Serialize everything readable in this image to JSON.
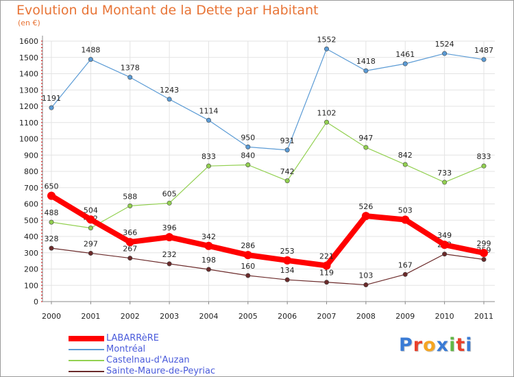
{
  "title": "Evolution du Montant de la Dette par Habitant",
  "unit_label": "(en €)",
  "logo_text": "Proxiti",
  "chart_data": {
    "type": "line",
    "title": "Evolution du Montant de la Dette par Habitant",
    "ylabel": "(en €)",
    "xlabel": "",
    "ylim": [
      0,
      1600
    ],
    "yticks": [
      0,
      100,
      200,
      300,
      400,
      500,
      600,
      700,
      800,
      900,
      1000,
      1100,
      1200,
      1300,
      1400,
      1500,
      1600
    ],
    "categories": [
      "2000",
      "2001",
      "2002",
      "2003",
      "2004",
      "2005",
      "2006",
      "2007",
      "2008",
      "2009",
      "2010",
      "2011"
    ],
    "grid": true,
    "legend_position": "bottom-left",
    "series": [
      {
        "name": "Montréal",
        "color": "#5b9bd5",
        "values": [
          1191,
          1488,
          1378,
          1243,
          1114,
          950,
          931,
          1552,
          1418,
          1461,
          1524,
          1487
        ]
      },
      {
        "name": "Castelnau-d'Auzan",
        "color": "#92d050",
        "values": [
          488,
          452,
          588,
          605,
          833,
          840,
          742,
          1102,
          947,
          842,
          733,
          833
        ]
      },
      {
        "name": "Sainte-Maure-de-Peyriac",
        "color": "#6b2a2a",
        "values": [
          328,
          297,
          267,
          232,
          198,
          160,
          134,
          119,
          103,
          167,
          292,
          259
        ]
      },
      {
        "name": "LABARRèRE",
        "color": "#ff0000",
        "values": [
          650,
          504,
          366,
          396,
          342,
          286,
          253,
          221,
          526,
          503,
          349,
          299
        ]
      }
    ],
    "legend_order": [
      "LABARRèRE",
      "Montréal",
      "Castelnau-d'Auzan",
      "Sainte-Maure-de-Peyriac"
    ]
  }
}
